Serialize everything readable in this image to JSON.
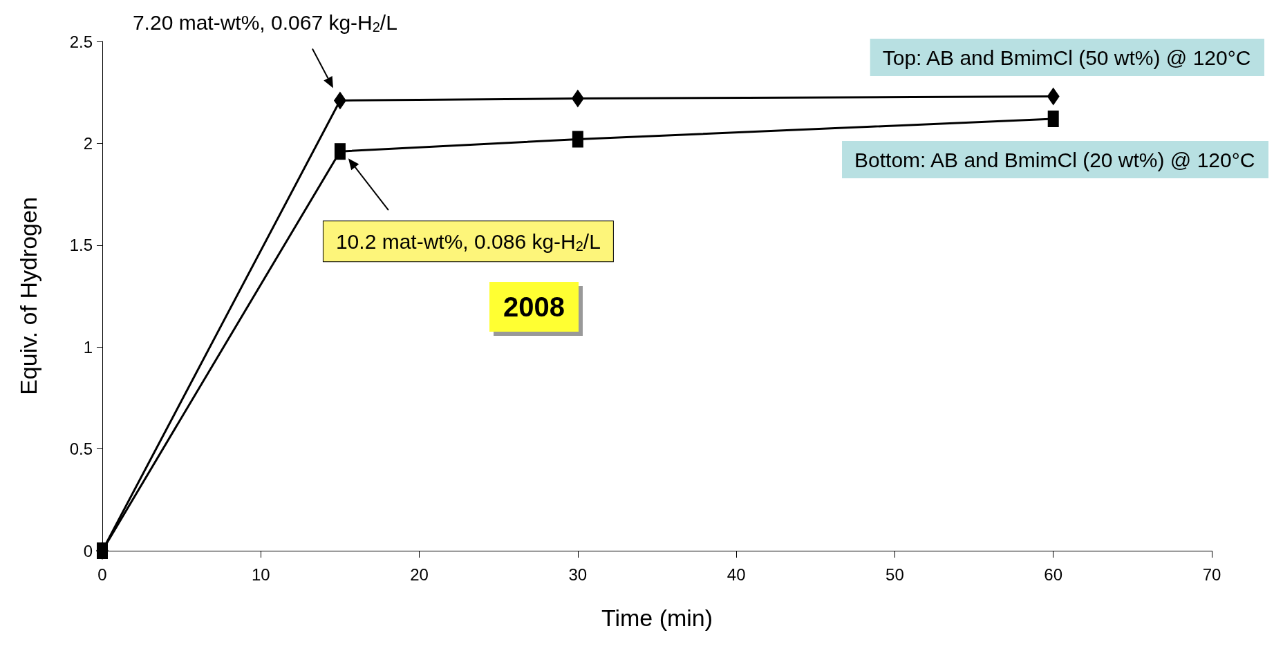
{
  "chart_data": {
    "type": "line",
    "xlabel": "Time (min)",
    "ylabel": "Equiv. of Hydrogen",
    "x": [
      0,
      15,
      30,
      60
    ],
    "series": [
      {
        "color": "#000000",
        "marker": "diamond",
        "values": [
          0,
          2.21,
          2.22,
          2.23
        ]
      },
      {
        "color": "#000000",
        "marker": "square",
        "values": [
          0,
          1.96,
          2.02,
          2.12
        ]
      }
    ],
    "xlim": [
      0,
      70
    ],
    "xticks": [
      0,
      10,
      20,
      30,
      40,
      50,
      60,
      70
    ],
    "ylim": [
      0,
      2.5
    ],
    "yticks": [
      0,
      0.5,
      1,
      1.5,
      2,
      2.5
    ],
    "grid": false,
    "line_style": "solid",
    "annotations": [
      "7.20 mat-wt%, 0.067 kg-H$_{2}$/L",
      "10.2 mat-wt%, 0.086 kg-H$_{2}$/L",
      "Top: AB and BmimCl (50 wt%) @ 120°C",
      "Bottom: AB and BmimCl (20 wt%) @ 120°C",
      "2008"
    ]
  }
}
